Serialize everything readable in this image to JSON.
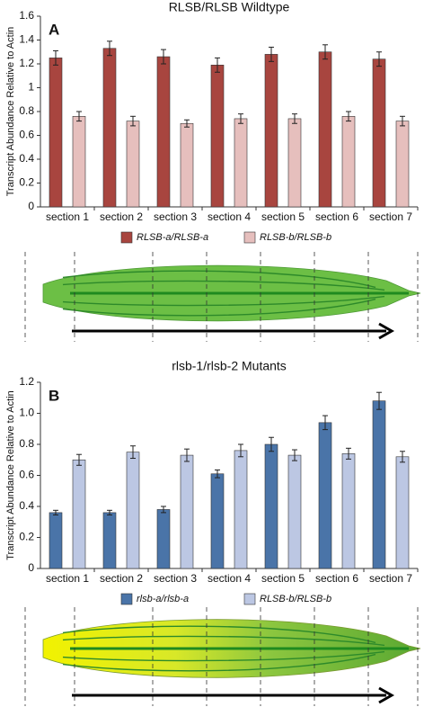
{
  "chart_data": [
    {
      "type": "bar",
      "title": "RLSB/RLSB Wildtype",
      "panel_label": "A",
      "y_label": "Transcript Abundance Relative to Actin",
      "categories": [
        "section 1",
        "section 2",
        "section 3",
        "section 4",
        "section 5",
        "section 6",
        "section 7"
      ],
      "series": [
        {
          "name": "RLSB-a/RLSB-a",
          "color": "#a8453f",
          "values": [
            1.25,
            1.33,
            1.26,
            1.19,
            1.28,
            1.3,
            1.24
          ],
          "errors": [
            0.06,
            0.06,
            0.06,
            0.06,
            0.06,
            0.06,
            0.06
          ]
        },
        {
          "name": "RLSB-b/RLSB-b",
          "color": "#e6bfbd",
          "values": [
            0.76,
            0.72,
            0.7,
            0.74,
            0.74,
            0.76,
            0.72
          ],
          "errors": [
            0.04,
            0.04,
            0.03,
            0.04,
            0.04,
            0.04,
            0.04
          ]
        }
      ],
      "ylim": [
        0,
        1.6
      ],
      "yticks": [
        0,
        0.2,
        0.4,
        0.6,
        0.8,
        1,
        1.2,
        1.4,
        1.6
      ],
      "leaf": "green"
    },
    {
      "type": "bar",
      "title": "rlsb-1/rlsb-2 Mutants",
      "panel_label": "B",
      "y_label": "Transcript Abundance Relative to Actin",
      "categories": [
        "section 1",
        "section 2",
        "section 3",
        "section 4",
        "section 5",
        "section 6",
        "section 7"
      ],
      "series": [
        {
          "name": "rlsb-a/rlsb-a",
          "color": "#4a74a8",
          "values": [
            0.36,
            0.36,
            0.38,
            0.61,
            0.8,
            0.94,
            1.08
          ],
          "errors": [
            0.015,
            0.015,
            0.02,
            0.025,
            0.045,
            0.045,
            0.055
          ]
        },
        {
          "name": "RLSB-b/RLSB-b",
          "color": "#bcc7e3",
          "values": [
            0.7,
            0.75,
            0.73,
            0.76,
            0.73,
            0.74,
            0.72
          ],
          "errors": [
            0.035,
            0.04,
            0.04,
            0.04,
            0.035,
            0.035,
            0.035
          ]
        }
      ],
      "ylim": [
        0,
        1.2
      ],
      "yticks": [
        0,
        0.2,
        0.4,
        0.6,
        0.8,
        {
          "value": 1,
          "label": "1.0"
        },
        1.2
      ],
      "leaf": "gradient"
    }
  ]
}
